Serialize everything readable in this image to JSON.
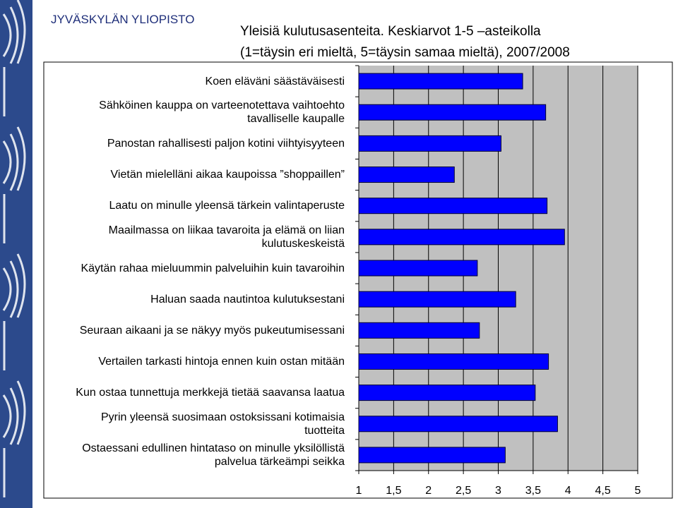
{
  "header": {
    "title": "JYVÄSKYLÄN YLIOPISTO"
  },
  "chart_data": {
    "type": "bar",
    "orientation": "horizontal",
    "title": "Yleisiä kulutusasenteita. Keskiarvot 1-5 –asteikolla",
    "subtitle": "(1=täysin eri mieltä, 5=täysin samaa mieltä), 2007/2008",
    "categories": [
      "Koen eläväni säästäväisesti",
      "Sähköinen kauppa on varteenotettava vaihtoehto tavalliselle kaupalle",
      "Panostan rahallisesti paljon kotini viihtyisyyteen",
      "Vietän mielelläni aikaa kaupoissa ”shoppaillen”",
      "Laatu on minulle yleensä tärkein valintaperuste",
      "Maailmassa on liikaa tavaroita ja elämä on liian kulutuskeskeistä",
      "Käytän rahaa mieluummin palveluihin kuin tavaroihin",
      "Haluan saada nautintoa kulutuksestani",
      "Seuraan aikaani ja se näkyy myös pukeutumisessani",
      "Vertailen tarkasti hintoja ennen kuin ostan mitään",
      "Kun ostaa tunnettuja merkkejä tietää saavansa laatua",
      "Pyrin yleensä suosimaan ostoksissani kotimaisia tuotteita",
      "Ostaessani edullinen hintataso on minulle yksilöllistä palvelua tärkeämpi seikka"
    ],
    "values": [
      3.35,
      3.68,
      3.04,
      2.37,
      3.7,
      3.95,
      2.7,
      3.25,
      2.73,
      3.72,
      3.53,
      3.85,
      3.1
    ],
    "color": "#0000ff",
    "xlim": [
      1,
      5
    ],
    "xticks": [
      1,
      {
        "value": 1.5,
        "label": "1,5"
      },
      2,
      {
        "value": 2.5,
        "label": "2,5"
      },
      3,
      {
        "value": 3.5,
        "label": "3,5"
      },
      4,
      {
        "value": 4.5,
        "label": "4,5"
      },
      5
    ],
    "grid": true
  }
}
